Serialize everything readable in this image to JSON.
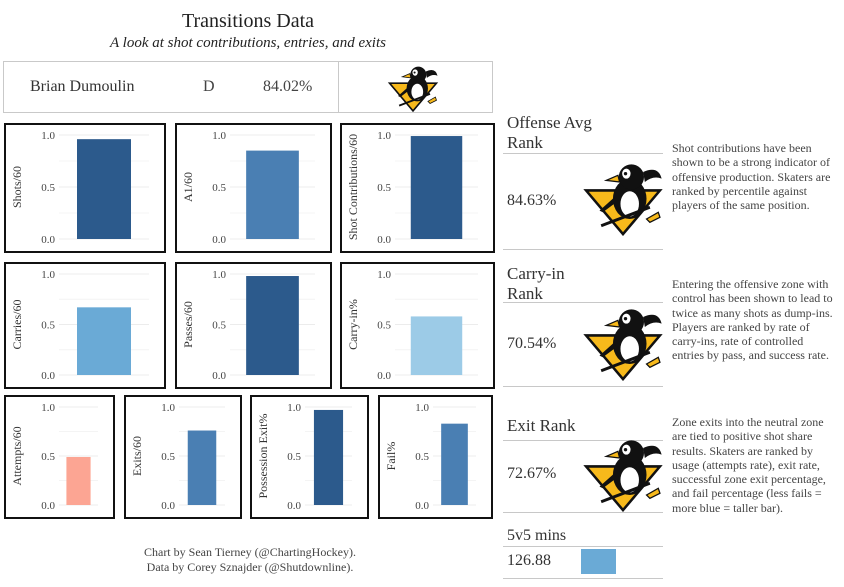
{
  "header": {
    "title": "Transitions Data",
    "subtitle": "A look at shot contributions, entries, and exits"
  },
  "player": {
    "name": "Brian Dumoulin",
    "position": "D",
    "percentile": "84.02%",
    "logo_icon": "penguins-logo-icon"
  },
  "colors": {
    "dark_blue": "#2c5a8c",
    "mid_blue": "#4a7fb3",
    "light_blue": "#6aaad6",
    "pale_blue": "#9ccbe7",
    "salmon": "#fca593",
    "grid": "#ececec"
  },
  "chart_data": [
    {
      "type": "bar",
      "ylabel": "Shots/60",
      "yticks": [
        "1.0",
        "0.5",
        "0.0"
      ],
      "ylim": [
        0,
        1
      ],
      "value": 0.96,
      "color": "#2c5a8c"
    },
    {
      "type": "bar",
      "ylabel": "A1/60",
      "yticks": [
        "1.0",
        "0.5",
        "0.0"
      ],
      "ylim": [
        0,
        1
      ],
      "value": 0.85,
      "color": "#4a7fb3"
    },
    {
      "type": "bar",
      "ylabel": "Shot Contributions/60",
      "yticks": [
        "1.0",
        "0.5",
        "0.0"
      ],
      "ylim": [
        0,
        1
      ],
      "value": 0.99,
      "color": "#2c5a8c"
    },
    {
      "type": "bar",
      "ylabel": "Carries/60",
      "yticks": [
        "1.0",
        "0.5",
        "0.0"
      ],
      "ylim": [
        0,
        1
      ],
      "value": 0.67,
      "color": "#6aaad6"
    },
    {
      "type": "bar",
      "ylabel": "Passes/60",
      "yticks": [
        "1.0",
        "0.5",
        "0.0"
      ],
      "ylim": [
        0,
        1
      ],
      "value": 0.98,
      "color": "#2c5a8c"
    },
    {
      "type": "bar",
      "ylabel": "Carry-in%",
      "yticks": [
        "1.0",
        "0.5",
        "0.0"
      ],
      "ylim": [
        0,
        1
      ],
      "value": 0.58,
      "color": "#9ccbe7"
    },
    {
      "type": "bar",
      "ylabel": "Attempts/60",
      "yticks": [
        "1.0",
        "0.5",
        "0.0"
      ],
      "ylim": [
        0,
        1
      ],
      "value": 0.49,
      "color": "#fca593"
    },
    {
      "type": "bar",
      "ylabel": "Exits/60",
      "yticks": [
        "1.0",
        "0.5",
        "0.0"
      ],
      "ylim": [
        0,
        1
      ],
      "value": 0.76,
      "color": "#4a7fb3"
    },
    {
      "type": "bar",
      "ylabel": "Possession Exit%",
      "yticks": [
        "1.0",
        "0.5",
        "0.0"
      ],
      "ylim": [
        0,
        1
      ],
      "value": 0.97,
      "color": "#2c5a8c"
    },
    {
      "type": "bar",
      "ylabel": "Fail%",
      "yticks": [
        "1.0",
        "0.5",
        "0.0"
      ],
      "ylim": [
        0,
        1
      ],
      "value": 0.83,
      "color": "#4a7fb3"
    }
  ],
  "ranks": {
    "offense": {
      "label": "Offense Avg Rank",
      "value": "84.63%",
      "description": "Shot contributions have been shown to be a strong indicator of offensive production. Skaters are ranked by percentile against players of the same position."
    },
    "carry_in": {
      "label": "Carry-in Rank",
      "value": "70.54%",
      "description": "Entering the offensive zone with control has been shown to lead to twice as many shots as dump-ins. Players are ranked by rate of carry-ins, rate of controlled entries by pass, and success rate."
    },
    "exit": {
      "label": "Exit Rank",
      "value": "72.67%",
      "description": "Zone exits into the neutral zone are tied to positive shot share results. Skaters are ranked by usage (attempts rate), exit rate, successful zone exit percentage, and fail percentage (less fails = more blue = taller bar)."
    }
  },
  "minutes": {
    "label": "5v5 mins",
    "value": "126.88",
    "bar_color": "#6aaad6"
  },
  "credits": {
    "line1": "Chart by Sean Tierney (@ChartingHockey).",
    "line2": "Data by Corey Sznajder (@Shutdownline)."
  }
}
